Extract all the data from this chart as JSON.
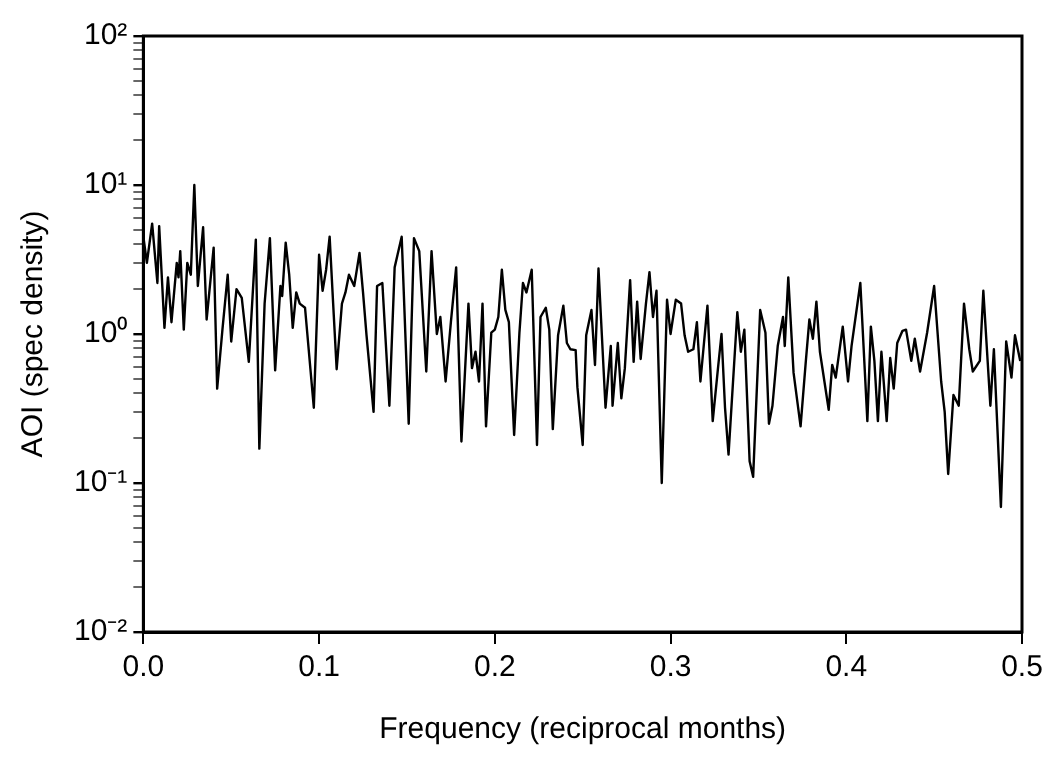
{
  "chart_data": {
    "type": "line",
    "xlabel": "Frequency (reciprocal months)",
    "ylabel": "AOI (spec density)",
    "log": "y",
    "grid": false,
    "legend": false,
    "marker": "none",
    "line_style": "solid",
    "xlim": [
      0,
      0.5
    ],
    "xticks": [
      {
        "value": 0,
        "label": "0.0"
      },
      0.1,
      0.2,
      0.3,
      0.4,
      0.5
    ],
    "ylim": [
      0.01,
      100
    ],
    "yticks": [
      {
        "value": 0.01,
        "label": "10⁻²"
      },
      {
        "value": 0.02,
        "label": null
      },
      {
        "value": 0.03,
        "label": null
      },
      {
        "value": 0.04,
        "label": null
      },
      {
        "value": 0.05,
        "label": null
      },
      {
        "value": 0.06,
        "label": null
      },
      {
        "value": 0.07,
        "label": null
      },
      {
        "value": 0.08,
        "label": null
      },
      {
        "value": 0.09,
        "label": null
      },
      {
        "value": 0.1,
        "label": "10⁻¹"
      },
      {
        "value": 0.2,
        "label": null
      },
      {
        "value": 0.3,
        "label": null
      },
      {
        "value": 0.4,
        "label": null
      },
      {
        "value": 0.5,
        "label": null
      },
      {
        "value": 0.6,
        "label": null
      },
      {
        "value": 0.7,
        "label": null
      },
      {
        "value": 0.8,
        "label": null
      },
      {
        "value": 0.9,
        "label": null
      },
      {
        "value": 1,
        "label": "10⁰"
      },
      {
        "value": 2,
        "label": null
      },
      {
        "value": 3,
        "label": null
      },
      {
        "value": 4,
        "label": null
      },
      {
        "value": 5,
        "label": null
      },
      {
        "value": 6,
        "label": null
      },
      {
        "value": 7,
        "label": null
      },
      {
        "value": 8,
        "label": null
      },
      {
        "value": 9,
        "label": null
      },
      {
        "value": 10,
        "label": "10¹"
      },
      {
        "value": 20,
        "label": null
      },
      {
        "value": 30,
        "label": null
      },
      {
        "value": 40,
        "label": null
      },
      {
        "value": 50,
        "label": null
      },
      {
        "value": 60,
        "label": null
      },
      {
        "value": 70,
        "label": null
      },
      {
        "value": 80,
        "label": null
      },
      {
        "value": 90,
        "label": null
      },
      {
        "value": 100,
        "label": "10²"
      }
    ],
    "series": [
      {
        "color": "#000000",
        "x": [
          0.0,
          0.002,
          0.005,
          0.008,
          0.009,
          0.012,
          0.014,
          0.016,
          0.019,
          0.02,
          0.021,
          0.023,
          0.025,
          0.027,
          0.029,
          0.031,
          0.034,
          0.036,
          0.04,
          0.042,
          0.045,
          0.048,
          0.05,
          0.053,
          0.056,
          0.06,
          0.064,
          0.066,
          0.069,
          0.072,
          0.075,
          0.078,
          0.079,
          0.081,
          0.083,
          0.085,
          0.087,
          0.089,
          0.092,
          0.097,
          0.1,
          0.102,
          0.104,
          0.106,
          0.108,
          0.11,
          0.113,
          0.115,
          0.117,
          0.12,
          0.123,
          0.125,
          0.127,
          0.131,
          0.133,
          0.136,
          0.14,
          0.143,
          0.147,
          0.151,
          0.154,
          0.157,
          0.161,
          0.164,
          0.167,
          0.169,
          0.172,
          0.175,
          0.178,
          0.181,
          0.185,
          0.187,
          0.189,
          0.191,
          0.193,
          0.195,
          0.198,
          0.2,
          0.202,
          0.204,
          0.206,
          0.208,
          0.211,
          0.214,
          0.216,
          0.218,
          0.221,
          0.224,
          0.226,
          0.229,
          0.231,
          0.233,
          0.236,
          0.239,
          0.241,
          0.243,
          0.246,
          0.247,
          0.25,
          0.252,
          0.255,
          0.257,
          0.259,
          0.263,
          0.266,
          0.267,
          0.27,
          0.272,
          0.274,
          0.277,
          0.279,
          0.281,
          0.283,
          0.286,
          0.288,
          0.29,
          0.292,
          0.293,
          0.295,
          0.298,
          0.3,
          0.303,
          0.306,
          0.308,
          0.31,
          0.313,
          0.315,
          0.317,
          0.321,
          0.324,
          0.327,
          0.329,
          0.331,
          0.333,
          0.338,
          0.34,
          0.342,
          0.345,
          0.347,
          0.351,
          0.354,
          0.356,
          0.358,
          0.361,
          0.364,
          0.365,
          0.367,
          0.37,
          0.374,
          0.377,
          0.379,
          0.381,
          0.383,
          0.385,
          0.39,
          0.392,
          0.394,
          0.398,
          0.401,
          0.403,
          0.408,
          0.412,
          0.414,
          0.416,
          0.418,
          0.42,
          0.423,
          0.425,
          0.427,
          0.429,
          0.432,
          0.434,
          0.437,
          0.439,
          0.442,
          0.446,
          0.45,
          0.454,
          0.456,
          0.458,
          0.461,
          0.464,
          0.467,
          0.47,
          0.472,
          0.476,
          0.478,
          0.482,
          0.484,
          0.488,
          0.491,
          0.494,
          0.496,
          0.499
        ],
        "values": [
          4.5,
          3.0,
          5.5,
          2.2,
          5.3,
          1.1,
          2.4,
          1.2,
          3.0,
          2.4,
          3.6,
          1.07,
          3.0,
          2.5,
          10,
          2.1,
          5.2,
          1.25,
          3.8,
          0.43,
          1.07,
          2.5,
          0.89,
          2.0,
          1.75,
          0.65,
          4.3,
          0.17,
          1.6,
          4.4,
          0.57,
          2.1,
          1.8,
          4.1,
          2.5,
          1.1,
          1.9,
          1.6,
          1.5,
          0.32,
          3.4,
          1.95,
          2.7,
          4.5,
          1.6,
          0.58,
          1.6,
          1.9,
          2.5,
          2.1,
          3.5,
          1.9,
          0.98,
          0.3,
          2.1,
          2.2,
          0.33,
          2.8,
          4.5,
          0.25,
          4.4,
          3.6,
          0.56,
          3.6,
          1.0,
          1.3,
          0.48,
          1.2,
          2.8,
          0.19,
          1.6,
          0.59,
          0.76,
          0.48,
          1.6,
          0.24,
          1.02,
          1.07,
          1.3,
          2.7,
          1.45,
          1.2,
          0.21,
          1.02,
          2.2,
          1.9,
          2.7,
          0.18,
          1.3,
          1.5,
          1.07,
          0.23,
          0.98,
          1.55,
          0.87,
          0.79,
          0.78,
          0.44,
          0.18,
          0.98,
          1.45,
          0.62,
          2.75,
          0.32,
          0.83,
          0.33,
          0.87,
          0.37,
          0.59,
          2.3,
          0.65,
          1.65,
          0.68,
          1.6,
          2.6,
          1.3,
          1.95,
          0.71,
          0.1,
          1.7,
          1.0,
          1.7,
          1.6,
          0.98,
          0.76,
          0.79,
          1.2,
          0.48,
          1.55,
          0.26,
          0.59,
          1.0,
          0.32,
          0.155,
          1.4,
          0.76,
          1.07,
          0.14,
          0.11,
          1.45,
          1.02,
          0.25,
          0.33,
          0.83,
          1.3,
          0.83,
          2.4,
          0.55,
          0.24,
          0.66,
          1.25,
          0.93,
          1.65,
          0.76,
          0.31,
          0.62,
          0.51,
          1.12,
          0.48,
          0.83,
          2.2,
          0.26,
          1.12,
          0.66,
          0.26,
          0.76,
          0.26,
          0.69,
          0.43,
          0.87,
          1.05,
          1.07,
          0.66,
          0.93,
          0.56,
          1.02,
          2.1,
          0.48,
          0.3,
          0.115,
          0.39,
          0.33,
          1.6,
          0.79,
          0.56,
          0.66,
          1.95,
          0.33,
          0.79,
          0.069,
          0.89,
          0.51,
          0.98,
          0.66
        ]
      }
    ]
  }
}
